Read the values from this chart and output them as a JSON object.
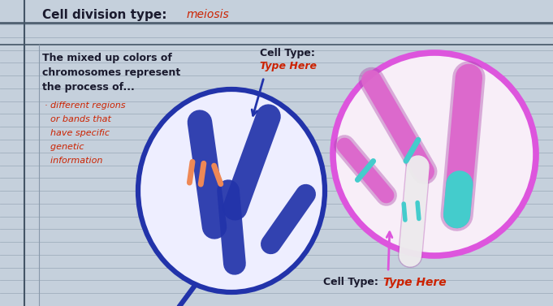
{
  "bg_color": "#c5d0dc",
  "title_text": "Cell division type:",
  "title_answer": "meiosis",
  "text_color_black": "#1a1a2e",
  "text_color_red": "#cc2200",
  "left_text_lines": [
    "The mixed up colors of",
    "chromosomes represent",
    "the process of..."
  ],
  "bullet_lines": [
    "different regions",
    "or bands that",
    "have specific",
    "genetic",
    "information"
  ],
  "cell_type_label": "Cell Type:",
  "cell_type_answer_top": "Type Here",
  "cell_type_answer_bottom": "Type Here",
  "cell_label_bottom": "Cell Type:",
  "dark_blue": "#2233aa",
  "mid_blue": "#3344bb",
  "magenta": "#dd66cc",
  "magenta_dark": "#aa44aa",
  "teal": "#44cccc",
  "orange": "#ee8855",
  "white_fill": "#eeeeff",
  "pink_fill": "#f8eef8",
  "right_circle_color": "#dd55dd"
}
